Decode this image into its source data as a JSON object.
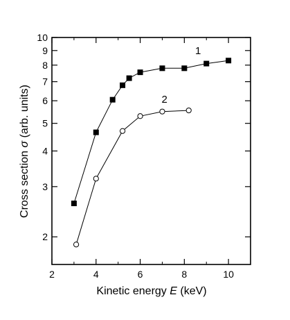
{
  "chart_data": {
    "type": "line",
    "title": "",
    "xlabel": {
      "prefix": "Kinetic energy ",
      "symbol": "E",
      "suffix": " (keV)"
    },
    "ylabel": {
      "prefix": "Cross section ",
      "symbol": "σ",
      "suffix": " (arb. units)"
    },
    "xlim": [
      2,
      11
    ],
    "ylim": [
      1.6,
      10
    ],
    "y_scale": "log",
    "grid": false,
    "x_ticks": [
      2,
      4,
      6,
      8,
      10
    ],
    "x_tick_labels": [
      "2",
      "4",
      "6",
      "8",
      "10"
    ],
    "x_minor_ticks": [
      3,
      5,
      7,
      9
    ],
    "y_ticks": [
      2,
      3,
      4,
      5,
      6,
      7,
      8,
      9,
      10
    ],
    "y_tick_labels": [
      "2",
      "3",
      "4",
      "5",
      "6",
      "7",
      "8",
      "9",
      "10"
    ],
    "series": [
      {
        "name": "1",
        "marker": "filled-square",
        "color": "#000000",
        "points": [
          {
            "x": 3.0,
            "y": 2.62
          },
          {
            "x": 4.0,
            "y": 4.65
          },
          {
            "x": 4.75,
            "y": 6.05
          },
          {
            "x": 5.2,
            "y": 6.8
          },
          {
            "x": 5.5,
            "y": 7.2
          },
          {
            "x": 6.0,
            "y": 7.55
          },
          {
            "x": 7.0,
            "y": 7.8
          },
          {
            "x": 8.0,
            "y": 7.8
          },
          {
            "x": 9.0,
            "y": 8.1
          },
          {
            "x": 10.0,
            "y": 8.3
          }
        ]
      },
      {
        "name": "2",
        "marker": "open-circle",
        "color": "#000000",
        "points": [
          {
            "x": 3.1,
            "y": 1.88
          },
          {
            "x": 4.0,
            "y": 3.2
          },
          {
            "x": 5.2,
            "y": 4.7
          },
          {
            "x": 6.0,
            "y": 5.3
          },
          {
            "x": 7.0,
            "y": 5.5
          },
          {
            "x": 8.2,
            "y": 5.55
          }
        ]
      }
    ]
  }
}
